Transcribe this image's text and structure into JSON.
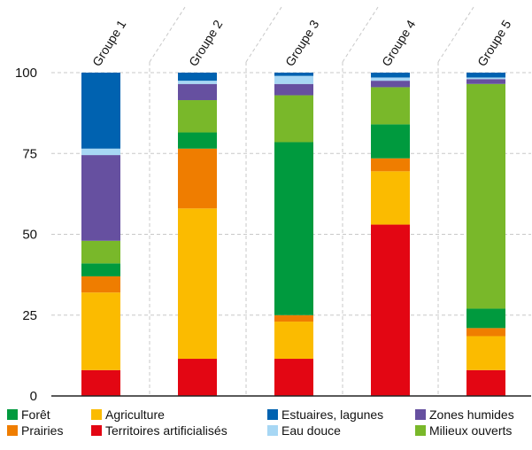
{
  "chart_data": {
    "type": "bar",
    "stacked": true,
    "categories": [
      "Groupe 1",
      "Groupe 2",
      "Groupe 3",
      "Groupe 4",
      "Groupe 5"
    ],
    "ylim": [
      0,
      100
    ],
    "yticks": [
      "0",
      "25",
      "50",
      "75",
      "100"
    ],
    "grid": true,
    "legend_position": "bottom",
    "series": [
      {
        "name": "Territoires artificialisés",
        "color": "#e30613",
        "values": [
          8,
          11.5,
          11.5,
          53,
          8
        ]
      },
      {
        "name": "Agriculture",
        "color": "#fbbb00",
        "values": [
          24,
          46.5,
          11.5,
          16.5,
          10.5
        ]
      },
      {
        "name": "Prairies",
        "color": "#ef7d00",
        "values": [
          5,
          18.5,
          2,
          4,
          2.5
        ]
      },
      {
        "name": "Forêt",
        "color": "#009a3e",
        "values": [
          4,
          5,
          53.5,
          10.5,
          6
        ]
      },
      {
        "name": "Milieux ouverts",
        "color": "#79b82a",
        "values": [
          7,
          10,
          14.5,
          11.5,
          69.5
        ]
      },
      {
        "name": "Zones humides",
        "color": "#6650a0",
        "values": [
          26.5,
          5,
          3.5,
          2,
          1.5
        ]
      },
      {
        "name": "Eau douce",
        "color": "#a7d7f4",
        "values": [
          2,
          1,
          2.5,
          1,
          0.5
        ]
      },
      {
        "name": "Estuaires, lagunes",
        "color": "#0062b0",
        "values": [
          23.5,
          2.5,
          1,
          1.5,
          1.5
        ]
      }
    ],
    "legend": [
      {
        "name": "Forêt",
        "color": "#009a3e"
      },
      {
        "name": "Agriculture",
        "color": "#fbbb00"
      },
      {
        "name": "Estuaires, lagunes",
        "color": "#0062b0"
      },
      {
        "name": "Zones humides",
        "color": "#6650a0"
      },
      {
        "name": "Prairies",
        "color": "#ef7d00"
      },
      {
        "name": "Territoires artificialisés",
        "color": "#e30613"
      },
      {
        "name": "Eau douce",
        "color": "#a7d7f4"
      },
      {
        "name": "Milieux ouverts",
        "color": "#79b82a"
      }
    ]
  }
}
